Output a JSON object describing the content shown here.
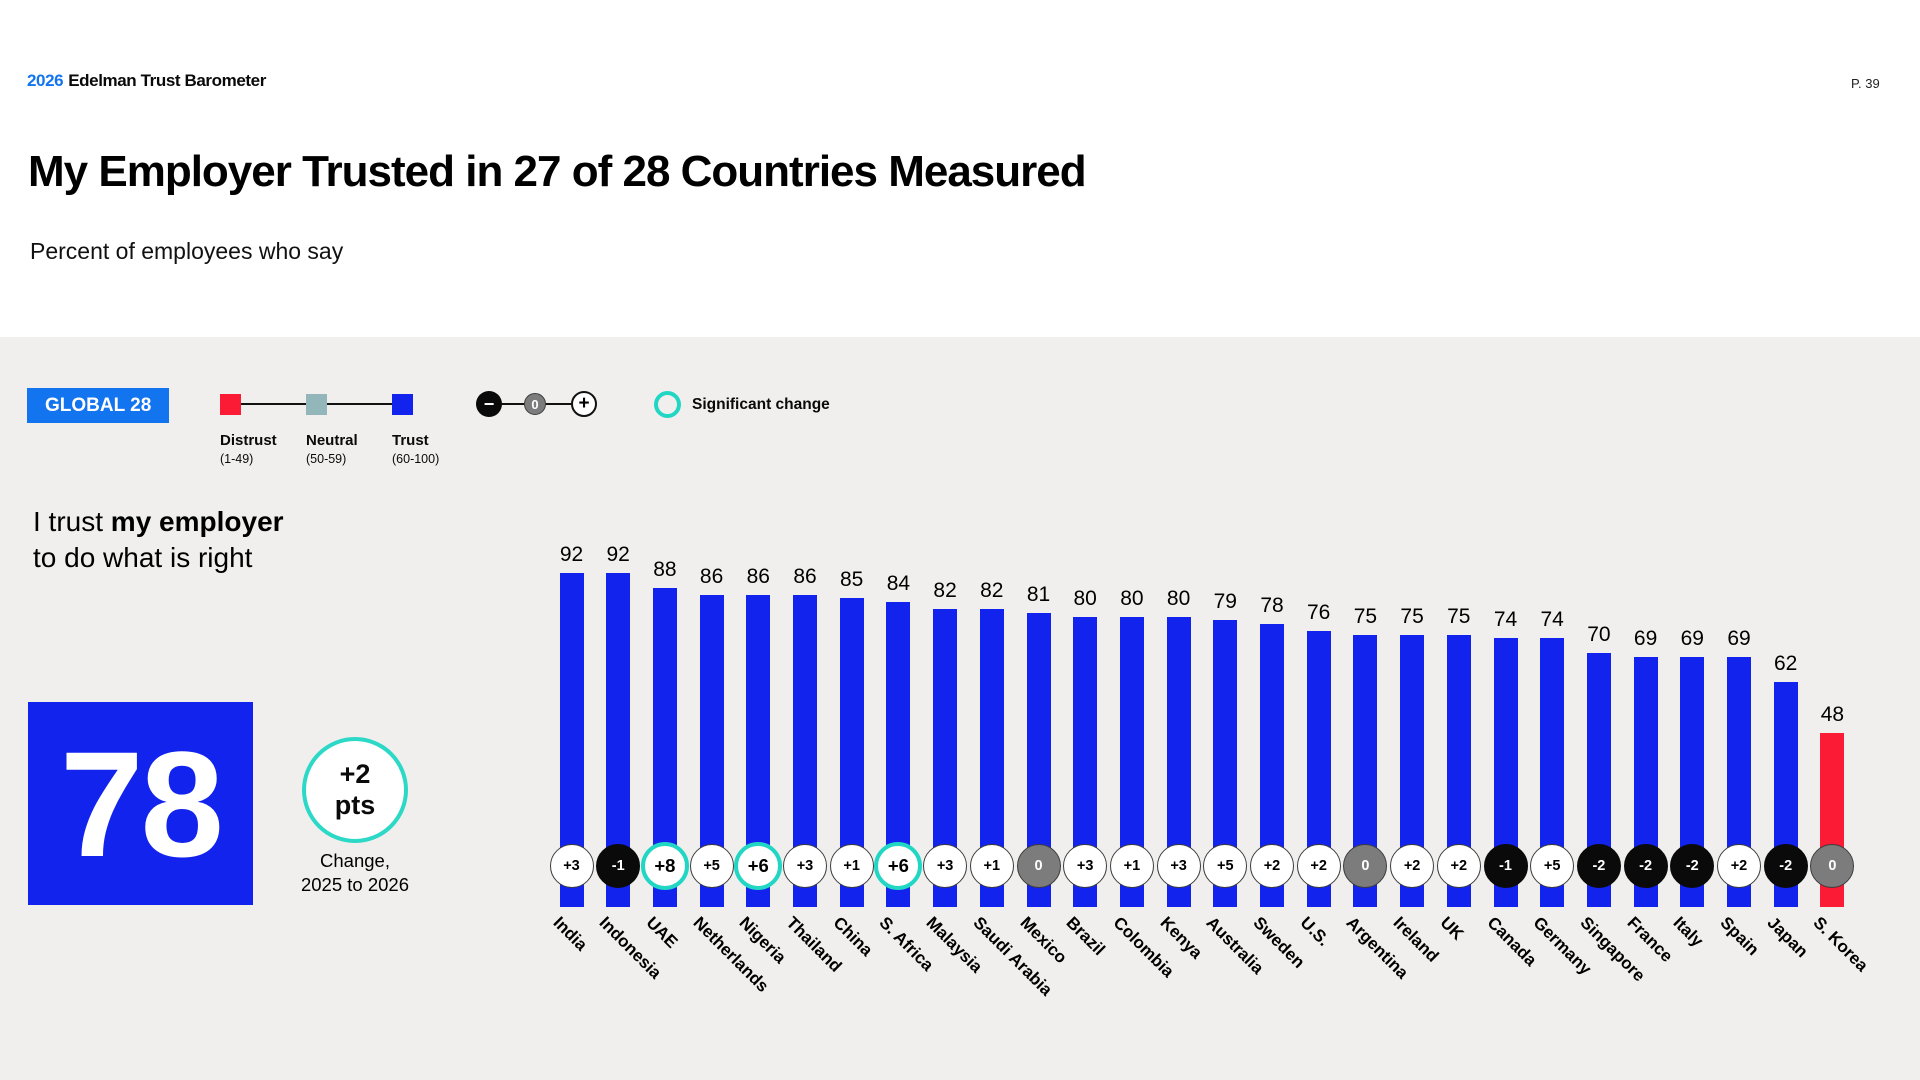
{
  "colors": {
    "background_gray": "#f0efee",
    "brand_blue": "#1374ef",
    "trust_blue": "#1323ee",
    "distrust_red": "#fb1b34",
    "neutral_teal": "#92b6ba",
    "significant_teal": "#22d6c4",
    "gray_badge": "#7c7c7c",
    "black_badge": "#0a0a0a"
  },
  "header": {
    "logo_year": "2026",
    "logo_text": "Edelman Trust Barometer",
    "page_number": "P. 39",
    "title": "My Employer Trusted in 27 of 28 Countries Measured",
    "subtitle": "Percent of employees who say"
  },
  "legend": {
    "global_badge": "GLOBAL 28",
    "scale": [
      {
        "label": "Distrust",
        "range": "(1-49)",
        "color": "#fb1b34"
      },
      {
        "label": "Neutral",
        "range": "(50-59)",
        "color": "#92b6ba"
      },
      {
        "label": "Trust",
        "range": "(60-100)",
        "color": "#1323ee"
      }
    ],
    "change_minus": "−",
    "change_zero": "0",
    "change_plus": "+",
    "significant_label": "Significant change"
  },
  "statement": {
    "line1_regular": "I trust ",
    "line1_bold": "my employer",
    "line2": "to do what is right"
  },
  "global_stat": {
    "value": "78",
    "change_value": "+2",
    "change_unit": "pts",
    "caption_line1": "Change,",
    "caption_line2": "2025 to 2026"
  },
  "chart_data": {
    "type": "bar",
    "title": "I trust my employer to do what is right",
    "ylim": [
      0,
      100
    ],
    "trust_color": "#1323ee",
    "distrust_color": "#fb1b34",
    "distrust_threshold": 50,
    "categories": [
      "India",
      "Indonesia",
      "UAE",
      "Netherlands",
      "Nigeria",
      "Thailand",
      "China",
      "S. Africa",
      "Malaysia",
      "Saudi Arabia",
      "Mexico",
      "Brazil",
      "Colombia",
      "Kenya",
      "Australia",
      "Sweden",
      "U.S.",
      "Argentina",
      "Ireland",
      "UK",
      "Canada",
      "Germany",
      "Singapore",
      "France",
      "Italy",
      "Spain",
      "Japan",
      "S. Korea"
    ],
    "values": [
      92,
      92,
      88,
      86,
      86,
      86,
      85,
      84,
      82,
      82,
      81,
      80,
      80,
      80,
      79,
      78,
      76,
      75,
      75,
      75,
      74,
      74,
      70,
      69,
      69,
      69,
      62,
      48
    ],
    "changes": [
      "+3",
      "-1",
      "+8",
      "+5",
      "+6",
      "+3",
      "+1",
      "+6",
      "+3",
      "+1",
      "0",
      "+3",
      "+1",
      "+3",
      "+5",
      "+2",
      "+2",
      "0",
      "+2",
      "+2",
      "-1",
      "+5",
      "-2",
      "-2",
      "-2",
      "+2",
      "-2",
      "0"
    ],
    "change_styles": [
      "white",
      "black",
      "significant",
      "white",
      "significant",
      "white",
      "white",
      "significant",
      "white",
      "white",
      "gray",
      "white",
      "white",
      "white",
      "white",
      "white",
      "white",
      "gray",
      "white",
      "white",
      "black",
      "white",
      "black",
      "black",
      "black",
      "white",
      "black",
      "gray"
    ]
  }
}
